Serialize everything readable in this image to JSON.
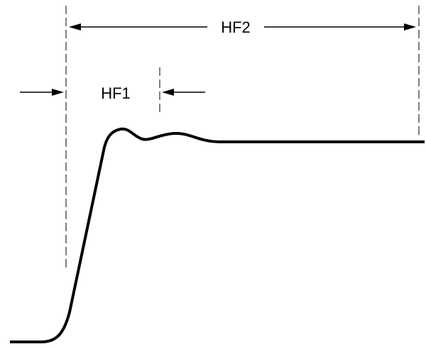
{
  "labels": {
    "hf1": "HF1",
    "hf2": "HF2"
  }
}
